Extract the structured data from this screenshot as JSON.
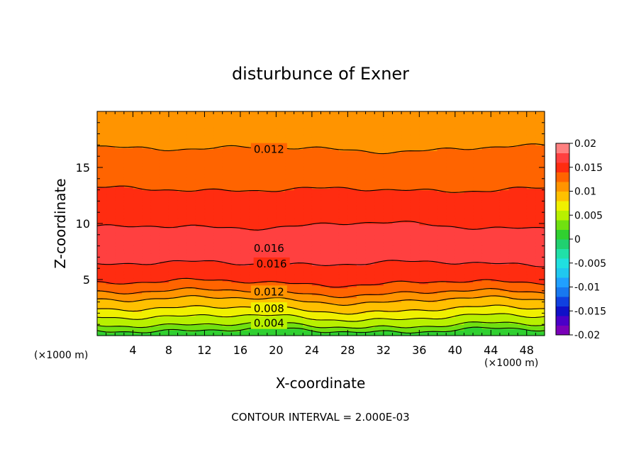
{
  "chart_data": {
    "type": "contour",
    "title": "disturbunce of Exner",
    "xlabel": "X-coordinate",
    "ylabel": "Z-coordinate",
    "x_unit_label": "(×1000 m)",
    "footer": "CONTOUR INTERVAL = 2.000E-03",
    "xlim": [
      0,
      50
    ],
    "ylim": [
      0,
      20
    ],
    "x_ticks": [
      4,
      8,
      12,
      16,
      20,
      24,
      28,
      32,
      36,
      40,
      44,
      48
    ],
    "x_tick_labels": [
      "4",
      "8",
      "12",
      "16",
      "20",
      "24",
      "28",
      "32",
      "36",
      "40",
      "44",
      "48"
    ],
    "y_ticks": [
      5,
      10,
      15
    ],
    "y_tick_labels": [
      "5",
      "10",
      "15"
    ],
    "contour_interval": 0.002,
    "colorbar": {
      "min": -0.02,
      "max": 0.02,
      "labels": [
        "0.02",
        "0.015",
        "0.01",
        "0.005",
        "0",
        "-0.005",
        "-0.01",
        "-0.015",
        "-0.02"
      ],
      "label_values": [
        0.02,
        0.015,
        0.01,
        0.005,
        0,
        -0.005,
        -0.01,
        -0.015,
        -0.02
      ],
      "bands": [
        {
          "from": -0.02,
          "to": -0.018,
          "color": "#7a00b8"
        },
        {
          "from": -0.018,
          "to": -0.016,
          "color": "#4a00c8"
        },
        {
          "from": -0.016,
          "to": -0.014,
          "color": "#1010c8"
        },
        {
          "from": -0.014,
          "to": -0.012,
          "color": "#1040e0"
        },
        {
          "from": -0.012,
          "to": -0.01,
          "color": "#1878f0"
        },
        {
          "from": -0.01,
          "to": -0.008,
          "color": "#20a0ff"
        },
        {
          "from": -0.008,
          "to": -0.006,
          "color": "#20c8f0"
        },
        {
          "from": -0.006,
          "to": -0.004,
          "color": "#20e0e0"
        },
        {
          "from": -0.004,
          "to": -0.002,
          "color": "#20e0a8"
        },
        {
          "from": -0.002,
          "to": 0.0,
          "color": "#20d070"
        },
        {
          "from": 0.0,
          "to": 0.002,
          "color": "#30d030"
        },
        {
          "from": 0.002,
          "to": 0.004,
          "color": "#70e010"
        },
        {
          "from": 0.004,
          "to": 0.006,
          "color": "#b8f000"
        },
        {
          "from": 0.006,
          "to": 0.008,
          "color": "#f0f000"
        },
        {
          "from": 0.008,
          "to": 0.01,
          "color": "#ffc000"
        },
        {
          "from": 0.01,
          "to": 0.012,
          "color": "#ff9400"
        },
        {
          "from": 0.012,
          "to": 0.014,
          "color": "#ff6400"
        },
        {
          "from": 0.014,
          "to": 0.016,
          "color": "#ff2c10"
        },
        {
          "from": 0.016,
          "to": 0.018,
          "color": "#ff4040"
        },
        {
          "from": 0.018,
          "to": 0.02,
          "color": "#ff8080"
        }
      ]
    },
    "profile": {
      "z": [
        0.0,
        0.5,
        1.0,
        1.5,
        2.0,
        2.5,
        3.0,
        3.5,
        4.0,
        4.6,
        5.5,
        7.0,
        9.0,
        10.5,
        11.5,
        12.5,
        14.0,
        15.5,
        16.8,
        18.0,
        19.0,
        20.0
      ],
      "value": [
        0.0005,
        0.002,
        0.004,
        0.005,
        0.007,
        0.008,
        0.009,
        0.0105,
        0.012,
        0.0135,
        0.0155,
        0.0163,
        0.0163,
        0.0156,
        0.015,
        0.0143,
        0.0135,
        0.0128,
        0.012,
        0.0113,
        0.0106,
        0.01
      ]
    },
    "contour_labels": [
      {
        "text": "0.012",
        "x": 17.5,
        "z": 16.6
      },
      {
        "text": "0.016",
        "x": 17.5,
        "z": 7.8
      },
      {
        "text": "0.016",
        "x": 17.8,
        "z": 6.4
      },
      {
        "text": "0.012",
        "x": 17.5,
        "z": 3.9
      },
      {
        "text": "0.008",
        "x": 17.5,
        "z": 2.4
      },
      {
        "text": "0.004",
        "x": 17.5,
        "z": 1.1
      }
    ]
  }
}
